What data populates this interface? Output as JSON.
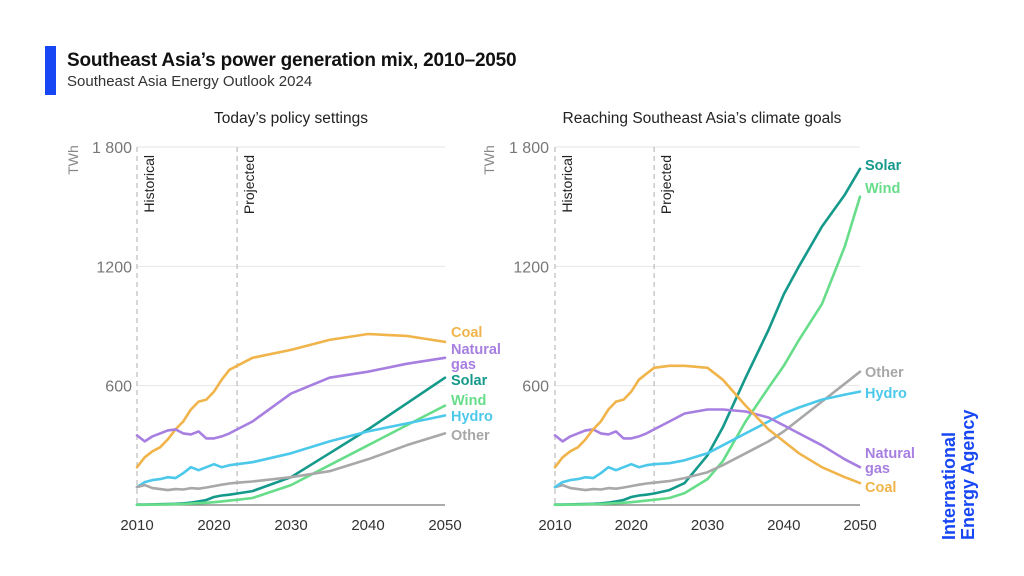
{
  "header": {
    "title": "Southeast Asia’s power generation mix, 2010–2050",
    "subtitle": "Southeast Asia Energy Outlook 2024",
    "accent_color": "#1746f5"
  },
  "brand": {
    "line1": "International",
    "line2": "Energy Agency",
    "color": "#1746f5"
  },
  "chart_data": [
    {
      "type": "line",
      "title": "Today’s policy settings",
      "xlabel": "",
      "ylabel": "TWh",
      "xlim": [
        2010,
        2050
      ],
      "ylim": [
        0,
        1800
      ],
      "xticks": [
        2010,
        2020,
        2030,
        2040,
        2050
      ],
      "yticks": [
        600,
        1200,
        1800
      ],
      "ytick_labels": [
        "600",
        "1200",
        "1 800"
      ],
      "grid": true,
      "annotations": [
        {
          "text": "Historical",
          "x": 2010
        },
        {
          "text": "Projected",
          "x": 2023
        }
      ],
      "legend_placement": "right (direct labels)",
      "x": [
        2010,
        2011,
        2012,
        2013,
        2014,
        2015,
        2016,
        2017,
        2018,
        2019,
        2020,
        2021,
        2022,
        2023,
        2025,
        2030,
        2035,
        2040,
        2045,
        2050
      ],
      "series": [
        {
          "name": "Coal",
          "color": "#f0b44a",
          "values": [
            190,
            240,
            270,
            290,
            330,
            380,
            420,
            480,
            520,
            530,
            570,
            630,
            680,
            700,
            740,
            780,
            830,
            860,
            850,
            820
          ]
        },
        {
          "name": "Natural gas",
          "color": "#a77fe0",
          "values": [
            350,
            320,
            345,
            360,
            375,
            380,
            360,
            355,
            370,
            335,
            335,
            345,
            360,
            380,
            420,
            560,
            640,
            670,
            710,
            740
          ]
        },
        {
          "name": "Solar",
          "color": "#14998b",
          "values": [
            2,
            2,
            3,
            4,
            5,
            6,
            8,
            12,
            18,
            25,
            40,
            48,
            52,
            58,
            70,
            140,
            260,
            380,
            510,
            640
          ]
        },
        {
          "name": "Wind",
          "color": "#67dd8a",
          "values": [
            1,
            1,
            2,
            2,
            3,
            4,
            5,
            7,
            9,
            11,
            14,
            18,
            22,
            26,
            35,
            100,
            200,
            300,
            400,
            500
          ]
        },
        {
          "name": "Hydro",
          "color": "#4cc8ea",
          "values": [
            90,
            115,
            125,
            130,
            140,
            135,
            160,
            190,
            175,
            190,
            205,
            190,
            200,
            205,
            215,
            260,
            320,
            370,
            410,
            450
          ]
        },
        {
          "name": "Other",
          "color": "#a8a8a8",
          "values": [
            90,
            100,
            85,
            80,
            75,
            80,
            78,
            85,
            82,
            88,
            95,
            102,
            108,
            112,
            118,
            140,
            170,
            230,
            300,
            360
          ]
        }
      ],
      "labels": [
        "Coal",
        "Natural gas",
        "Solar",
        "Wind",
        "Hydro",
        "Other"
      ]
    },
    {
      "type": "line",
      "title": "Reaching Southeast Asia’s climate goals",
      "xlabel": "",
      "ylabel": "TWh",
      "xlim": [
        2010,
        2050
      ],
      "ylim": [
        0,
        1800
      ],
      "xticks": [
        2010,
        2020,
        2030,
        2040,
        2050
      ],
      "yticks": [
        600,
        1200,
        1800
      ],
      "ytick_labels": [
        "600",
        "1200",
        "1 800"
      ],
      "grid": true,
      "annotations": [
        {
          "text": "Historical",
          "x": 2010
        },
        {
          "text": "Projected",
          "x": 2023
        }
      ],
      "legend_placement": "right (direct labels)",
      "x": [
        2010,
        2011,
        2012,
        2013,
        2014,
        2015,
        2016,
        2017,
        2018,
        2019,
        2020,
        2021,
        2022,
        2023,
        2025,
        2027,
        2030,
        2032,
        2035,
        2038,
        2040,
        2042,
        2045,
        2048,
        2050
      ],
      "series": [
        {
          "name": "Solar",
          "color": "#14998b",
          "values": [
            2,
            2,
            3,
            4,
            5,
            6,
            8,
            12,
            18,
            25,
            40,
            48,
            52,
            58,
            75,
            110,
            250,
            390,
            640,
            880,
            1060,
            1200,
            1400,
            1560,
            1690
          ]
        },
        {
          "name": "Wind",
          "color": "#67dd8a",
          "values": [
            1,
            1,
            2,
            2,
            3,
            4,
            5,
            7,
            9,
            11,
            14,
            18,
            22,
            26,
            35,
            60,
            130,
            220,
            420,
            590,
            700,
            830,
            1010,
            1300,
            1550
          ]
        },
        {
          "name": "Other",
          "color": "#a8a8a8",
          "values": [
            90,
            100,
            85,
            80,
            75,
            80,
            78,
            85,
            82,
            88,
            95,
            102,
            108,
            112,
            120,
            135,
            165,
            200,
            260,
            320,
            370,
            430,
            520,
            610,
            670
          ]
        },
        {
          "name": "Hydro",
          "color": "#4cc8ea",
          "values": [
            90,
            115,
            125,
            130,
            140,
            135,
            160,
            190,
            175,
            190,
            205,
            190,
            200,
            205,
            210,
            225,
            260,
            300,
            360,
            420,
            460,
            490,
            530,
            555,
            570
          ]
        },
        {
          "name": "Natural gas",
          "color": "#a77fe0",
          "values": [
            350,
            320,
            345,
            360,
            375,
            380,
            360,
            355,
            370,
            335,
            335,
            345,
            360,
            380,
            420,
            460,
            480,
            480,
            470,
            440,
            400,
            360,
            300,
            230,
            190
          ]
        },
        {
          "name": "Coal",
          "color": "#f0b44a",
          "values": [
            190,
            240,
            270,
            290,
            330,
            380,
            420,
            480,
            520,
            530,
            570,
            630,
            660,
            690,
            700,
            700,
            690,
            630,
            500,
            380,
            320,
            260,
            190,
            140,
            110
          ]
        }
      ],
      "labels": [
        "Solar",
        "Wind",
        "Other",
        "Hydro",
        "Natural gas",
        "Coal"
      ]
    }
  ]
}
